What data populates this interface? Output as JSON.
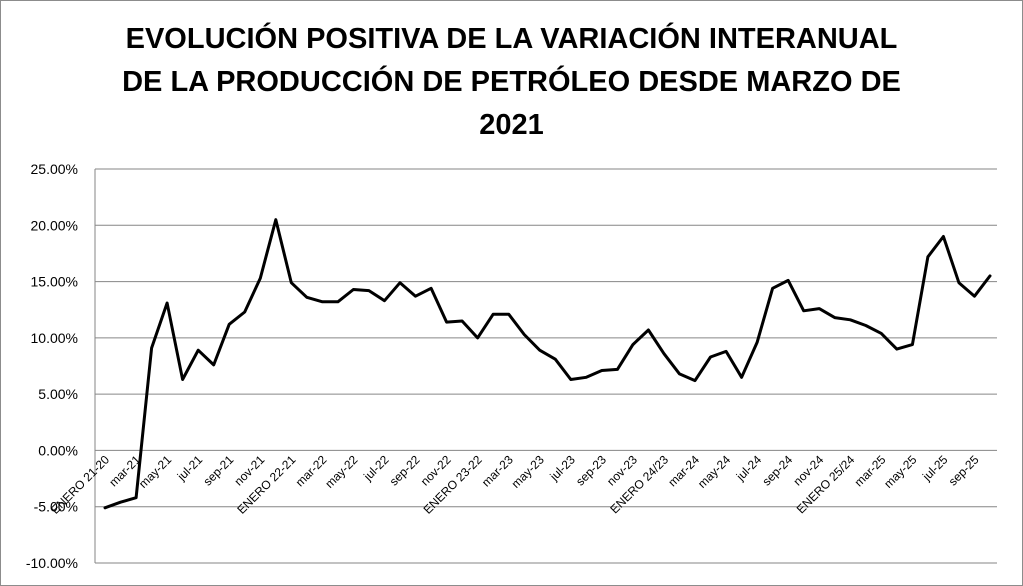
{
  "chart_data": {
    "type": "line",
    "title_lines": [
      "EVOLUCIÓN POSITIVA DE LA VARIACIÓN INTERANUAL",
      "DE LA PRODUCCIÓN DE PETRÓLEO DESDE MARZO DE",
      "2021"
    ],
    "xlabel": "",
    "ylabel": "",
    "ylim": [
      -10,
      25
    ],
    "ytick_values": [
      -10,
      -5,
      0,
      5,
      10,
      15,
      20,
      25
    ],
    "ytick_labels": [
      "-10.00%",
      "-5.00%",
      "0.00%",
      "5.00%",
      "10.00%",
      "15.00%",
      "20.00%",
      "25.00%"
    ],
    "grid": "horizontal",
    "legend": "none",
    "line_color": "#000000",
    "x_tick_labels": [
      {
        "index": 0,
        "label": "ENERO 21-20"
      },
      {
        "index": 2,
        "label": "mar-21"
      },
      {
        "index": 4,
        "label": "may-21"
      },
      {
        "index": 6,
        "label": "jul-21"
      },
      {
        "index": 8,
        "label": "sep-21"
      },
      {
        "index": 10,
        "label": "nov-21"
      },
      {
        "index": 12,
        "label": "ENERO 22-21"
      },
      {
        "index": 14,
        "label": "mar-22"
      },
      {
        "index": 16,
        "label": "may-22"
      },
      {
        "index": 18,
        "label": "jul-22"
      },
      {
        "index": 20,
        "label": "sep-22"
      },
      {
        "index": 22,
        "label": "nov-22"
      },
      {
        "index": 24,
        "label": "ENERO 23-22"
      },
      {
        "index": 26,
        "label": "mar-23"
      },
      {
        "index": 28,
        "label": "may-23"
      },
      {
        "index": 30,
        "label": "jul-23"
      },
      {
        "index": 32,
        "label": "sep-23"
      },
      {
        "index": 34,
        "label": "nov-23"
      },
      {
        "index": 36,
        "label": "ENERO 24/23"
      },
      {
        "index": 38,
        "label": "mar-24"
      },
      {
        "index": 40,
        "label": "may-24"
      },
      {
        "index": 42,
        "label": "jul-24"
      },
      {
        "index": 44,
        "label": "sep-24"
      },
      {
        "index": 46,
        "label": "nov-24"
      },
      {
        "index": 48,
        "label": "ENERO 25/24"
      },
      {
        "index": 50,
        "label": "mar-25"
      },
      {
        "index": 52,
        "label": "may-25"
      },
      {
        "index": 54,
        "label": "jul-25"
      },
      {
        "index": 56,
        "label": "sep-25"
      }
    ],
    "series": [
      {
        "values": [
          -5.1,
          -4.6,
          -4.2,
          9.1,
          13.1,
          6.3,
          8.9,
          7.6,
          11.2,
          12.3,
          15.3,
          20.5,
          14.9,
          13.6,
          13.2,
          13.2,
          14.3,
          14.2,
          13.3,
          14.9,
          13.7,
          14.4,
          11.4,
          11.5,
          10.0,
          12.1,
          12.1,
          10.3,
          8.9,
          8.1,
          6.3,
          6.5,
          7.1,
          7.2,
          9.4,
          10.7,
          8.6,
          6.8,
          6.2,
          8.3,
          8.8,
          6.5,
          9.6,
          14.4,
          15.1,
          12.4,
          12.6,
          11.8,
          11.6,
          11.1,
          10.4,
          9.0,
          9.4,
          17.2,
          19.0,
          14.9,
          13.7,
          15.5
        ]
      }
    ]
  }
}
